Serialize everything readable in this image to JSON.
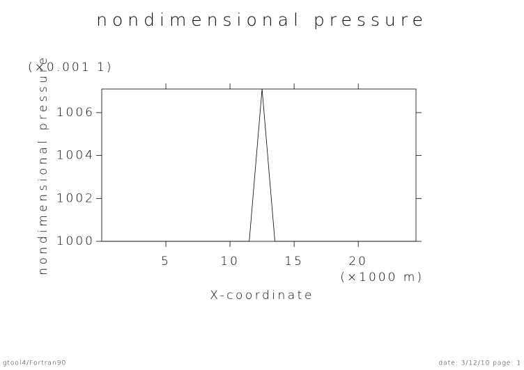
{
  "chart_data": {
    "type": "line",
    "title": "nondimensional pressure",
    "ylabel": "nondimensional pressure",
    "yunit": "(×0.001 1)",
    "xlabel": "X-coordinate",
    "xunit": "(×1000 m)",
    "x": [
      0,
      11.5,
      12.5,
      13.5,
      24.5
    ],
    "series": [
      {
        "name": "nondimensional pressure",
        "color": "#000000",
        "values": [
          1000,
          1000,
          1007.1,
          1000,
          1000
        ]
      }
    ],
    "xlim": [
      0,
      24.5
    ],
    "xticks": [
      5,
      10,
      15,
      20
    ],
    "ylim": [
      1000,
      1007.1
    ],
    "yticks": [
      1000,
      1002,
      1004,
      1006
    ],
    "grid": false,
    "footer_left": "gtool4/Fortran90",
    "footer_right": "date: 3/12/10 page: 1"
  }
}
